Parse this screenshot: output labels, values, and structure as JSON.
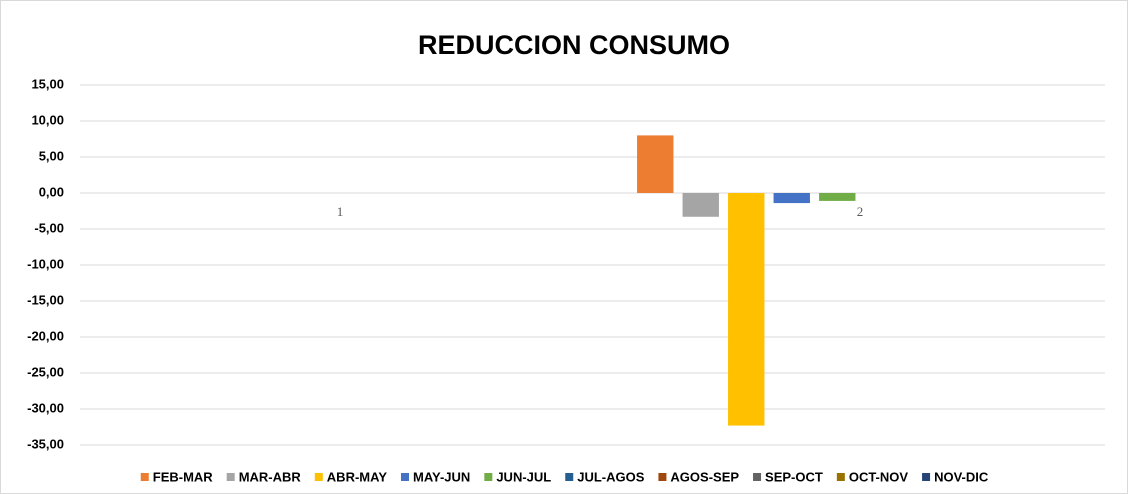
{
  "chart_data": {
    "type": "bar",
    "title": "REDUCCION CONSUMO",
    "categories": [
      "1",
      "2"
    ],
    "series": [
      {
        "name": "FEB-MAR",
        "color": "#ed7d31",
        "values": [
          null,
          8
        ]
      },
      {
        "name": "MAR-ABR",
        "color": "#a5a5a5",
        "values": [
          null,
          -3.3
        ]
      },
      {
        "name": "ABR-MAY",
        "color": "#ffc000",
        "values": [
          null,
          -32.3
        ]
      },
      {
        "name": "MAY-JUN",
        "color": "#4472c4",
        "values": [
          null,
          -1.4
        ]
      },
      {
        "name": "JUN-JUL",
        "color": "#70ad47",
        "values": [
          null,
          -1.1
        ]
      },
      {
        "name": "JUL-AGOS",
        "color": "#255e91",
        "values": [
          null,
          null
        ]
      },
      {
        "name": "AGOS-SEP",
        "color": "#9e480e",
        "values": [
          null,
          null
        ]
      },
      {
        "name": "SEP-OCT",
        "color": "#636363",
        "values": [
          null,
          null
        ]
      },
      {
        "name": "OCT-NOV",
        "color": "#997300",
        "values": [
          null,
          null
        ]
      },
      {
        "name": "NOV-DIC",
        "color": "#264478",
        "values": [
          null,
          null
        ]
      }
    ],
    "ylim": [
      -35,
      15
    ],
    "yticks": [
      {
        "value": -35,
        "label": "-35,00"
      },
      {
        "value": -30,
        "label": "-30,00"
      },
      {
        "value": -25,
        "label": "-25,00"
      },
      {
        "value": -20,
        "label": "-20,00"
      },
      {
        "value": -15,
        "label": "-15,00"
      },
      {
        "value": -10,
        "label": "-10,00"
      },
      {
        "value": -5,
        "label": "-5,00"
      },
      {
        "value": 0,
        "label": "0,00"
      },
      {
        "value": 5,
        "label": "5,00"
      },
      {
        "value": 10,
        "label": "10,00"
      },
      {
        "value": 15,
        "label": "15,00"
      }
    ],
    "grid": true,
    "legend": "bottom"
  }
}
